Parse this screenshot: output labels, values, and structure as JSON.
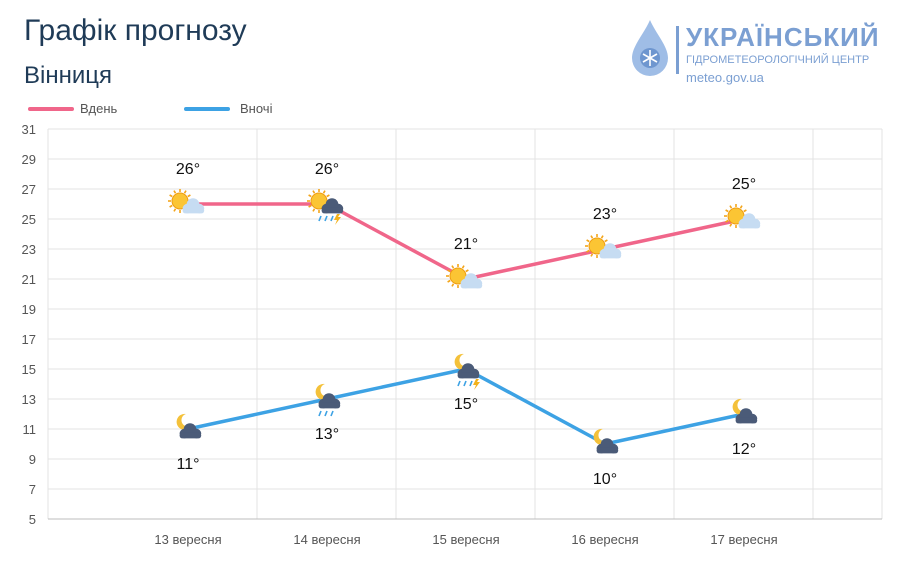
{
  "header": {
    "title": "Графік прогнозу",
    "city": "Вінниця"
  },
  "logo": {
    "name": "УКРАЇНСЬКИЙ",
    "subtitle": "ГІДРОМЕТЕОРОЛОГІЧНИЙ ЦЕНТР",
    "url": "meteo.gov.ua"
  },
  "colors": {
    "day": "#f0668a",
    "night": "#3da2e4",
    "grid": "#e3e3e3",
    "title": "#1f3b57"
  },
  "chart_data": {
    "type": "line",
    "categories": [
      "13 вересня",
      "14 вересня",
      "15 вересня",
      "16 вересня",
      "17 вересня"
    ],
    "series": [
      {
        "name": "Вдень",
        "values": [
          26,
          26,
          21,
          23,
          25
        ],
        "labels": [
          "26°",
          "26°",
          "21°",
          "23°",
          "25°"
        ],
        "icons": [
          "sun-cloud-icon",
          "sun-storm-rain-icon",
          "sun-cloud-icon",
          "sun-cloud-icon",
          "sun-cloud-icon"
        ]
      },
      {
        "name": "Вночі",
        "values": [
          11,
          13,
          15,
          10,
          12
        ],
        "labels": [
          "11°",
          "13°",
          "15°",
          "10°",
          "12°"
        ],
        "icons": [
          "moon-cloud-icon",
          "moon-cloud-rain-icon",
          "moon-storm-rain-icon",
          "moon-cloud-icon",
          "moon-cloud-icon"
        ]
      }
    ],
    "yticks": [
      "31",
      "29",
      "27",
      "25",
      "23",
      "21",
      "19",
      "17",
      "15",
      "13",
      "11",
      "9",
      "7",
      "5"
    ],
    "ylim": [
      5,
      31
    ],
    "grid": true,
    "legend": "top-left"
  }
}
